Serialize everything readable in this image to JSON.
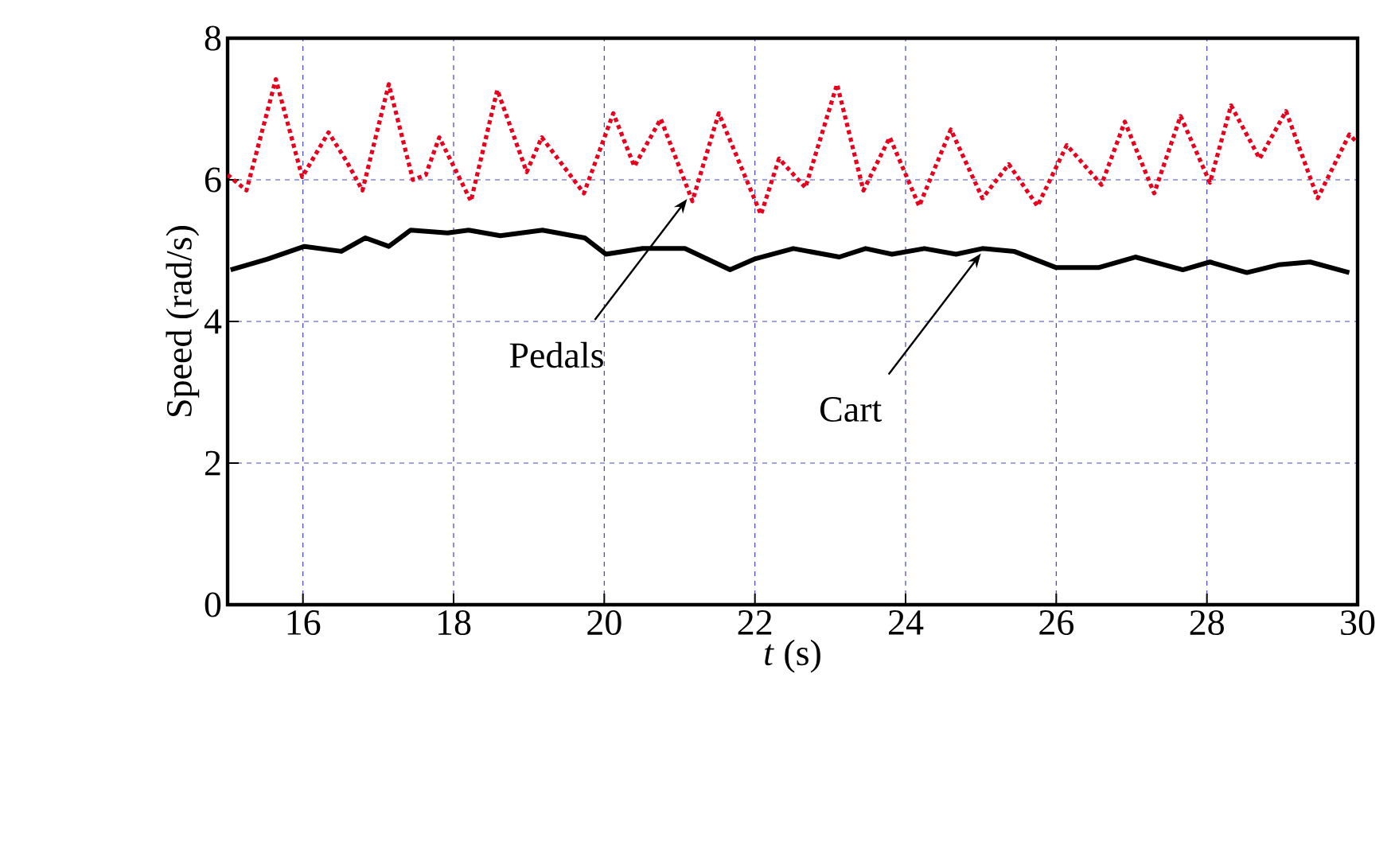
{
  "chart_data": {
    "type": "line",
    "xlabel": "*t* (s)",
    "ylabel": "Speed (rad/s)",
    "xlim": [
      15,
      30
    ],
    "ylim": [
      0,
      8
    ],
    "xticks": [
      16,
      18,
      20,
      22,
      24,
      26,
      28,
      30
    ],
    "yticks": [
      0,
      2,
      4,
      6,
      8
    ],
    "grid": true,
    "series": [
      {
        "color": "#e8001c",
        "line_style": "dotted",
        "x": [
          15.0,
          15.25,
          15.64,
          15.99,
          16.34,
          16.58,
          16.79,
          17.14,
          17.46,
          17.63,
          17.81,
          18.23,
          18.58,
          18.97,
          19.17,
          19.73,
          20.12,
          20.4,
          20.75,
          21.17,
          21.52,
          22.08,
          22.32,
          22.67,
          23.09,
          23.44,
          23.79,
          24.18,
          24.6,
          25.02,
          25.37,
          25.75,
          26.14,
          26.6,
          26.91,
          27.3,
          27.65,
          28.04,
          28.32,
          28.7,
          29.05,
          29.47,
          29.89,
          30.0
        ],
        "values": [
          6.07,
          5.85,
          7.42,
          6.04,
          6.67,
          6.26,
          5.85,
          7.35,
          6.0,
          6.07,
          6.6,
          5.7,
          7.27,
          6.11,
          6.6,
          5.81,
          6.94,
          6.19,
          6.86,
          5.7,
          6.94,
          5.51,
          6.3,
          5.89,
          7.35,
          5.85,
          6.6,
          5.63,
          6.71,
          5.74,
          6.22,
          5.63,
          6.49,
          5.93,
          6.82,
          5.81,
          6.9,
          5.96,
          7.05,
          6.3,
          6.97,
          5.74,
          6.64,
          6.52
        ]
      },
      {
        "color": "#000000",
        "line_style": "solid",
        "x": [
          15.04,
          15.53,
          16.02,
          16.51,
          16.83,
          17.14,
          17.43,
          17.92,
          18.2,
          18.62,
          19.18,
          19.74,
          20.02,
          20.51,
          21.07,
          21.67,
          21.99,
          22.51,
          23.12,
          23.47,
          23.82,
          24.25,
          24.67,
          25.02,
          25.44,
          26.0,
          26.56,
          27.05,
          27.68,
          28.04,
          28.53,
          28.95,
          29.37,
          29.89
        ],
        "values": [
          4.73,
          4.88,
          5.06,
          4.99,
          5.18,
          5.06,
          5.29,
          5.25,
          5.29,
          5.21,
          5.29,
          5.18,
          4.95,
          5.03,
          5.03,
          4.73,
          4.88,
          5.03,
          4.91,
          5.03,
          4.95,
          5.03,
          4.95,
          5.03,
          4.99,
          4.76,
          4.76,
          4.91,
          4.73,
          4.84,
          4.69,
          4.8,
          4.84,
          4.69
        ]
      }
    ],
    "annotations": [
      {
        "text": "Pedals",
        "x": 21.1,
        "y": 5.73
      },
      {
        "text": "Cart",
        "x": 25.0,
        "y": 4.96
      }
    ]
  }
}
